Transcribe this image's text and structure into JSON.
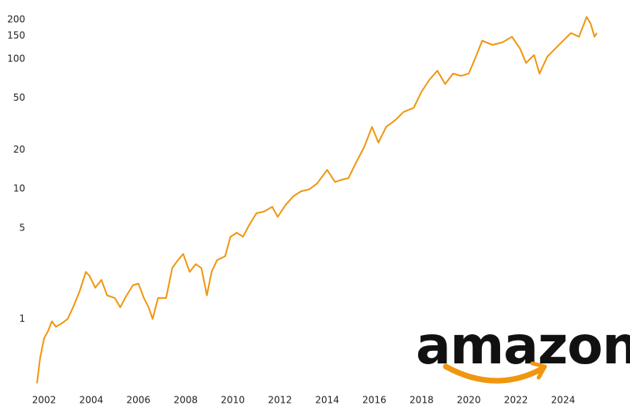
{
  "chart_data": {
    "type": "line",
    "annotation": "amazon",
    "color": "#f0960f",
    "log_scale": true,
    "grid": false,
    "x": [
      2001.7,
      2001.83,
      2002.0,
      2002.17,
      2002.33,
      2002.5,
      2002.77,
      2003.0,
      2003.23,
      2003.5,
      2003.77,
      2003.93,
      2004.17,
      2004.43,
      2004.67,
      2005.0,
      2005.23,
      2005.5,
      2005.77,
      2006.0,
      2006.23,
      2006.43,
      2006.6,
      2006.83,
      2007.17,
      2007.43,
      2007.67,
      2007.9,
      2008.17,
      2008.43,
      2008.67,
      2008.9,
      2009.1,
      2009.33,
      2009.67,
      2009.9,
      2010.17,
      2010.43,
      2010.7,
      2011.0,
      2011.33,
      2011.67,
      2011.9,
      2012.23,
      2012.57,
      2012.9,
      2013.23,
      2013.57,
      2014.0,
      2014.33,
      2014.57,
      2014.9,
      2015.23,
      2015.57,
      2015.9,
      2016.17,
      2016.5,
      2016.9,
      2017.23,
      2017.67,
      2018.0,
      2018.33,
      2018.67,
      2019.0,
      2019.33,
      2019.67,
      2020.0,
      2020.33,
      2020.57,
      2021.0,
      2021.43,
      2021.83,
      2022.17,
      2022.43,
      2022.77,
      2023.0,
      2023.33,
      2023.67,
      2024.0,
      2024.33,
      2024.67,
      2025.0,
      2025.17,
      2025.33,
      2025.43
    ],
    "values": [
      0.32,
      0.5,
      0.71,
      0.81,
      0.96,
      0.87,
      0.93,
      1.0,
      1.23,
      1.62,
      2.3,
      2.14,
      1.74,
      2.0,
      1.52,
      1.45,
      1.23,
      1.52,
      1.82,
      1.87,
      1.45,
      1.23,
      1.0,
      1.45,
      1.45,
      2.46,
      2.83,
      3.16,
      2.3,
      2.64,
      2.46,
      1.52,
      2.3,
      2.83,
      3.03,
      4.29,
      4.6,
      4.29,
      5.3,
      6.5,
      6.7,
      7.3,
      6.1,
      7.5,
      8.8,
      9.6,
      9.9,
      11,
      14,
      11.3,
      11.7,
      12.1,
      16,
      21,
      30,
      22.7,
      30,
      34,
      39,
      42,
      56,
      69,
      81,
      64,
      77,
      74,
      77,
      107,
      138,
      128,
      134,
      148,
      120,
      93,
      107,
      77,
      104,
      120,
      138,
      158,
      148,
      210,
      186,
      148,
      158
    ],
    "xlim": [
      2001.4,
      2025.9
    ],
    "xticks": [
      2002,
      2004,
      2006,
      2008,
      2010,
      2012,
      2014,
      2016,
      2018,
      2020,
      2022,
      2024
    ],
    "ylim": [
      0.3,
      230
    ],
    "yticks": [
      1,
      5,
      10,
      20,
      50,
      100,
      150,
      200
    ]
  }
}
